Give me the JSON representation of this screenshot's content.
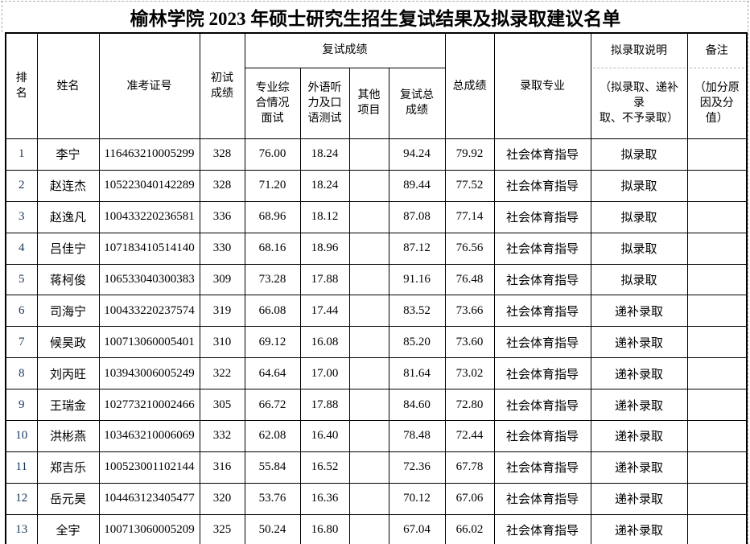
{
  "page": {
    "title": "榆林学院 2023 年硕士研究生招生复试结果及拟录取建议名单"
  },
  "colors": {
    "rank_text": "#17365d",
    "grid_line": "#000000",
    "dashed_line": "#ababab"
  },
  "table": {
    "headers": {
      "rank": "排\n名",
      "name": "姓名",
      "exam_no": "准考证号",
      "initial_score": "初试\n成绩",
      "retest_group": "复试成绩",
      "interview": "专业综\n合情况\n面试",
      "foreign_lang": "外语听\n力及口\n语测试",
      "other": "其他\n项目",
      "retest_total": "复试总\n成绩",
      "total": "总成绩",
      "major": "录取专业",
      "decision_title": "拟录取说明",
      "decision_note": "（拟录取、递补录\n取、不予录取）",
      "remark_title": "备注",
      "remark_note": "（加分原\n因及分\n值）"
    },
    "rows": [
      {
        "rank": "1",
        "name": "李宁",
        "exam_no": "116463210005299",
        "initial": "328",
        "interview": "76.00",
        "foreign": "18.24",
        "other": "",
        "retest_total": "94.24",
        "total": "79.92",
        "major": "社会体育指导",
        "decision": "拟录取",
        "remark": ""
      },
      {
        "rank": "2",
        "name": "赵连杰",
        "exam_no": "105223040142289",
        "initial": "328",
        "interview": "71.20",
        "foreign": "18.24",
        "other": "",
        "retest_total": "89.44",
        "total": "77.52",
        "major": "社会体育指导",
        "decision": "拟录取",
        "remark": ""
      },
      {
        "rank": "3",
        "name": "赵逸凡",
        "exam_no": "100433220236581",
        "initial": "336",
        "interview": "68.96",
        "foreign": "18.12",
        "other": "",
        "retest_total": "87.08",
        "total": "77.14",
        "major": "社会体育指导",
        "decision": "拟录取",
        "remark": ""
      },
      {
        "rank": "4",
        "name": "吕佳宁",
        "exam_no": "107183410514140",
        "initial": "330",
        "interview": "68.16",
        "foreign": "18.96",
        "other": "",
        "retest_total": "87.12",
        "total": "76.56",
        "major": "社会体育指导",
        "decision": "拟录取",
        "remark": ""
      },
      {
        "rank": "5",
        "name": "蒋柯俊",
        "exam_no": "106533040300383",
        "initial": "309",
        "interview": "73.28",
        "foreign": "17.88",
        "other": "",
        "retest_total": "91.16",
        "total": "76.48",
        "major": "社会体育指导",
        "decision": "拟录取",
        "remark": ""
      },
      {
        "rank": "6",
        "name": "司海宁",
        "exam_no": "100433220237574",
        "initial": "319",
        "interview": "66.08",
        "foreign": "17.44",
        "other": "",
        "retest_total": "83.52",
        "total": "73.66",
        "major": "社会体育指导",
        "decision": "递补录取",
        "remark": ""
      },
      {
        "rank": "7",
        "name": "候昊政",
        "exam_no": "100713060005401",
        "initial": "310",
        "interview": "69.12",
        "foreign": "16.08",
        "other": "",
        "retest_total": "85.20",
        "total": "73.60",
        "major": "社会体育指导",
        "decision": "递补录取",
        "remark": ""
      },
      {
        "rank": "8",
        "name": "刘丙旺",
        "exam_no": "103943006005249",
        "initial": "322",
        "interview": "64.64",
        "foreign": "17.00",
        "other": "",
        "retest_total": "81.64",
        "total": "73.02",
        "major": "社会体育指导",
        "decision": "递补录取",
        "remark": ""
      },
      {
        "rank": "9",
        "name": "王瑞金",
        "exam_no": "102773210002466",
        "initial": "305",
        "interview": "66.72",
        "foreign": "17.88",
        "other": "",
        "retest_total": "84.60",
        "total": "72.80",
        "major": "社会体育指导",
        "decision": "递补录取",
        "remark": ""
      },
      {
        "rank": "10",
        "name": "洪彬燕",
        "exam_no": "103463210006069",
        "initial": "332",
        "interview": "62.08",
        "foreign": "16.40",
        "other": "",
        "retest_total": "78.48",
        "total": "72.44",
        "major": "社会体育指导",
        "decision": "递补录取",
        "remark": ""
      },
      {
        "rank": "11",
        "name": "郑吉乐",
        "exam_no": "100523001102144",
        "initial": "316",
        "interview": "55.84",
        "foreign": "16.52",
        "other": "",
        "retest_total": "72.36",
        "total": "67.78",
        "major": "社会体育指导",
        "decision": "递补录取",
        "remark": ""
      },
      {
        "rank": "12",
        "name": "岳元昊",
        "exam_no": "104463123405477",
        "initial": "320",
        "interview": "53.76",
        "foreign": "16.36",
        "other": "",
        "retest_total": "70.12",
        "total": "67.06",
        "major": "社会体育指导",
        "decision": "递补录取",
        "remark": ""
      },
      {
        "rank": "13",
        "name": "全宇",
        "exam_no": "100713060005209",
        "initial": "325",
        "interview": "50.24",
        "foreign": "16.80",
        "other": "",
        "retest_total": "67.04",
        "total": "66.02",
        "major": "社会体育指导",
        "decision": "递补录取",
        "remark": ""
      }
    ]
  }
}
